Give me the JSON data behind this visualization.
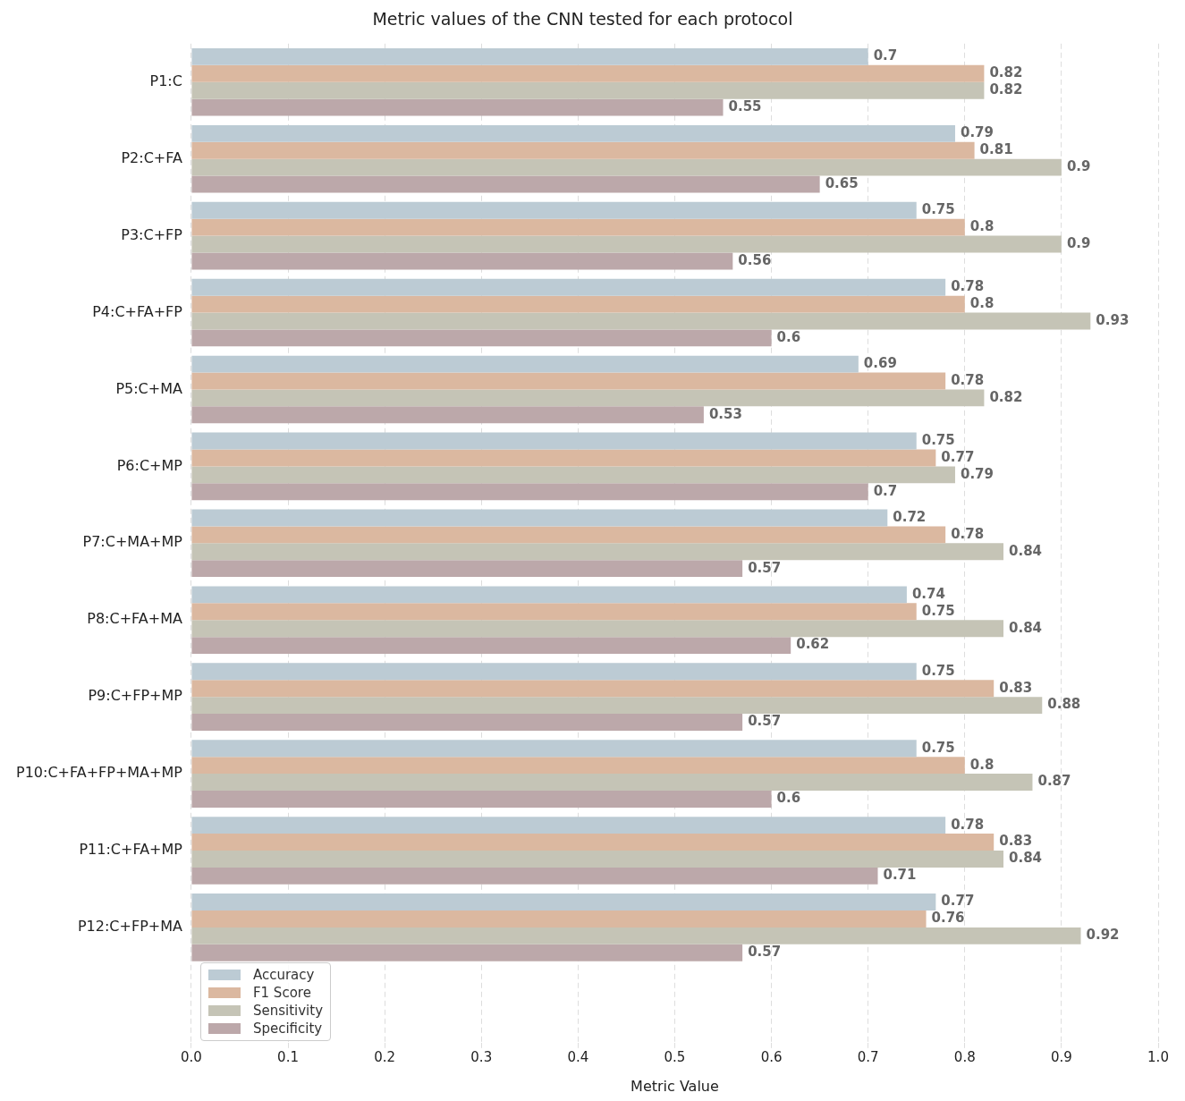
{
  "chart_data": {
    "type": "bar",
    "orientation": "horizontal",
    "title": "Metric values of the CNN tested for each protocol",
    "xlabel": "Metric Value",
    "categories": [
      "P1:C",
      "P2:C+FA",
      "P3:C+FP",
      "P4:C+FA+FP",
      "P5:C+MA",
      "P6:C+MP",
      "P7:C+MA+MP",
      "P8:C+FA+MA",
      "P9:C+FP+MP",
      "P10:C+FA+FP+MA+MP",
      "P11:C+FA+MP",
      "P12:C+FP+MA"
    ],
    "series": [
      {
        "name": "Accuracy",
        "color": "#bccbd4",
        "values": [
          0.7,
          0.79,
          0.75,
          0.78,
          0.69,
          0.75,
          0.72,
          0.74,
          0.75,
          0.75,
          0.78,
          0.77
        ]
      },
      {
        "name": "F1 Score",
        "color": "#dbb8a0",
        "values": [
          0.82,
          0.81,
          0.8,
          0.8,
          0.78,
          0.77,
          0.78,
          0.75,
          0.83,
          0.8,
          0.83,
          0.76
        ]
      },
      {
        "name": "Sensitivity",
        "color": "#c5c4b6",
        "values": [
          0.82,
          0.9,
          0.9,
          0.93,
          0.82,
          0.79,
          0.84,
          0.84,
          0.88,
          0.87,
          0.84,
          0.92
        ]
      },
      {
        "name": "Specificity",
        "color": "#bca8aa",
        "values": [
          0.55,
          0.65,
          0.56,
          0.6,
          0.53,
          0.7,
          0.57,
          0.62,
          0.57,
          0.6,
          0.71,
          0.57
        ]
      }
    ],
    "xlim": [
      0,
      1
    ],
    "xticks": [
      {
        "value": 0,
        "label": "0.0"
      },
      0.1,
      0.2,
      0.3,
      0.4,
      0.5,
      0.6,
      0.7,
      0.8,
      0.9,
      {
        "value": 1,
        "label": "1.0"
      }
    ],
    "data_labels": true,
    "grid": "x",
    "legend": "bottom left"
  }
}
